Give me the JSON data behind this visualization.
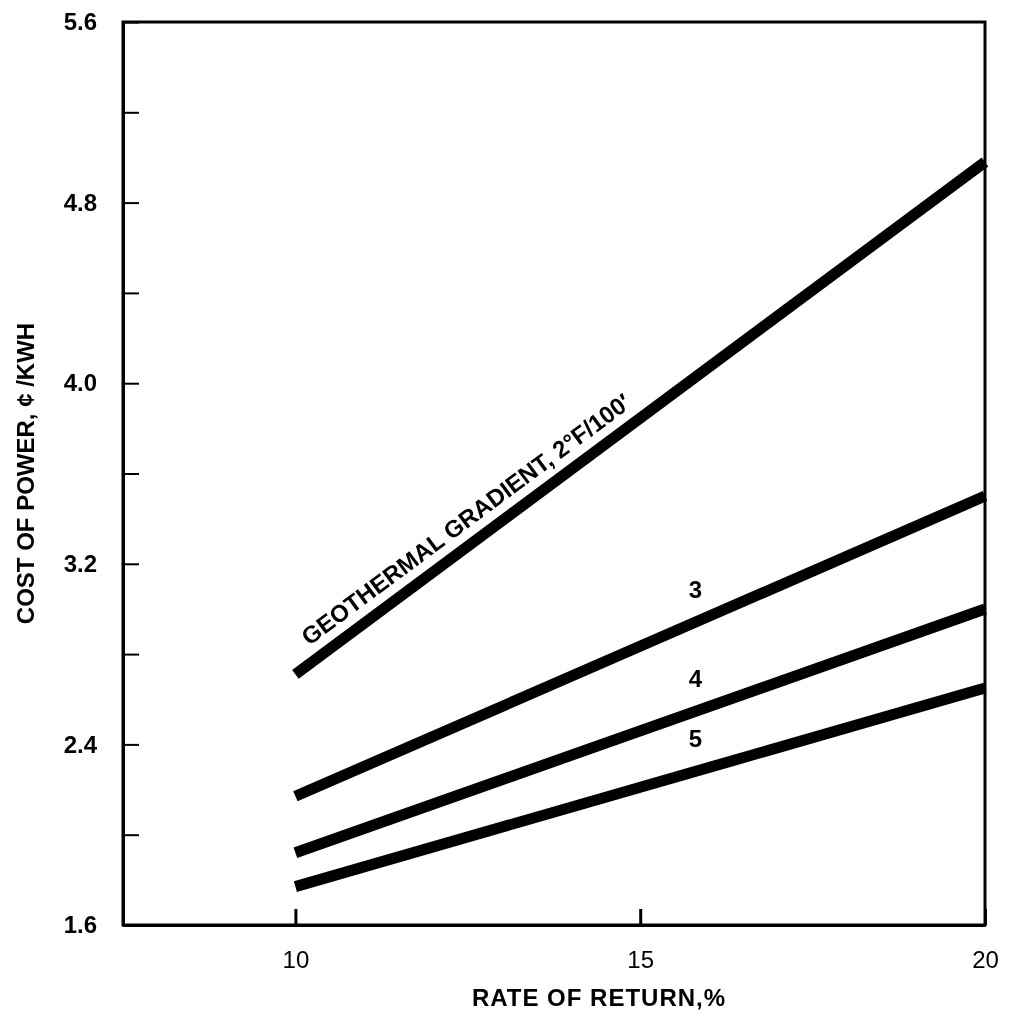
{
  "chart_data": {
    "type": "line",
    "xlabel": "RATE OF RETURN,%",
    "ylabel": "COST OF POWER,  ¢ /KWH",
    "x": [
      10,
      20
    ],
    "series": [
      {
        "name": "GEOTHERMAL GRADIENT, 2°F/100′",
        "color": "#000000",
        "values": [
          2.71,
          4.98
        ]
      },
      {
        "name": "3",
        "color": "#000000",
        "values": [
          2.17,
          3.5
        ]
      },
      {
        "name": "4",
        "color": "#000000",
        "values": [
          1.92,
          3.0
        ]
      },
      {
        "name": "5",
        "color": "#000000",
        "values": [
          1.77,
          2.65
        ]
      }
    ],
    "xlim": [
      7.5,
      20
    ],
    "xticks": [
      10,
      15,
      20
    ],
    "ylim": [
      1.6,
      5.6
    ],
    "yticks": [
      {
        "value": 1.6,
        "label": "1.6"
      },
      {
        "value": 2.0,
        "label": null
      },
      {
        "value": 2.4,
        "label": "2.4"
      },
      {
        "value": 2.8,
        "label": null
      },
      {
        "value": 3.2,
        "label": "3.2"
      },
      {
        "value": 3.6,
        "label": null
      },
      {
        "value": 4.0,
        "label": "4.0"
      },
      {
        "value": 4.4,
        "label": null
      },
      {
        "value": 4.8,
        "label": "4.8"
      },
      {
        "value": 5.2,
        "label": null
      },
      {
        "value": 5.6,
        "label": "5.6"
      }
    ],
    "grid": false,
    "marker": "none",
    "line_style": "solid"
  }
}
